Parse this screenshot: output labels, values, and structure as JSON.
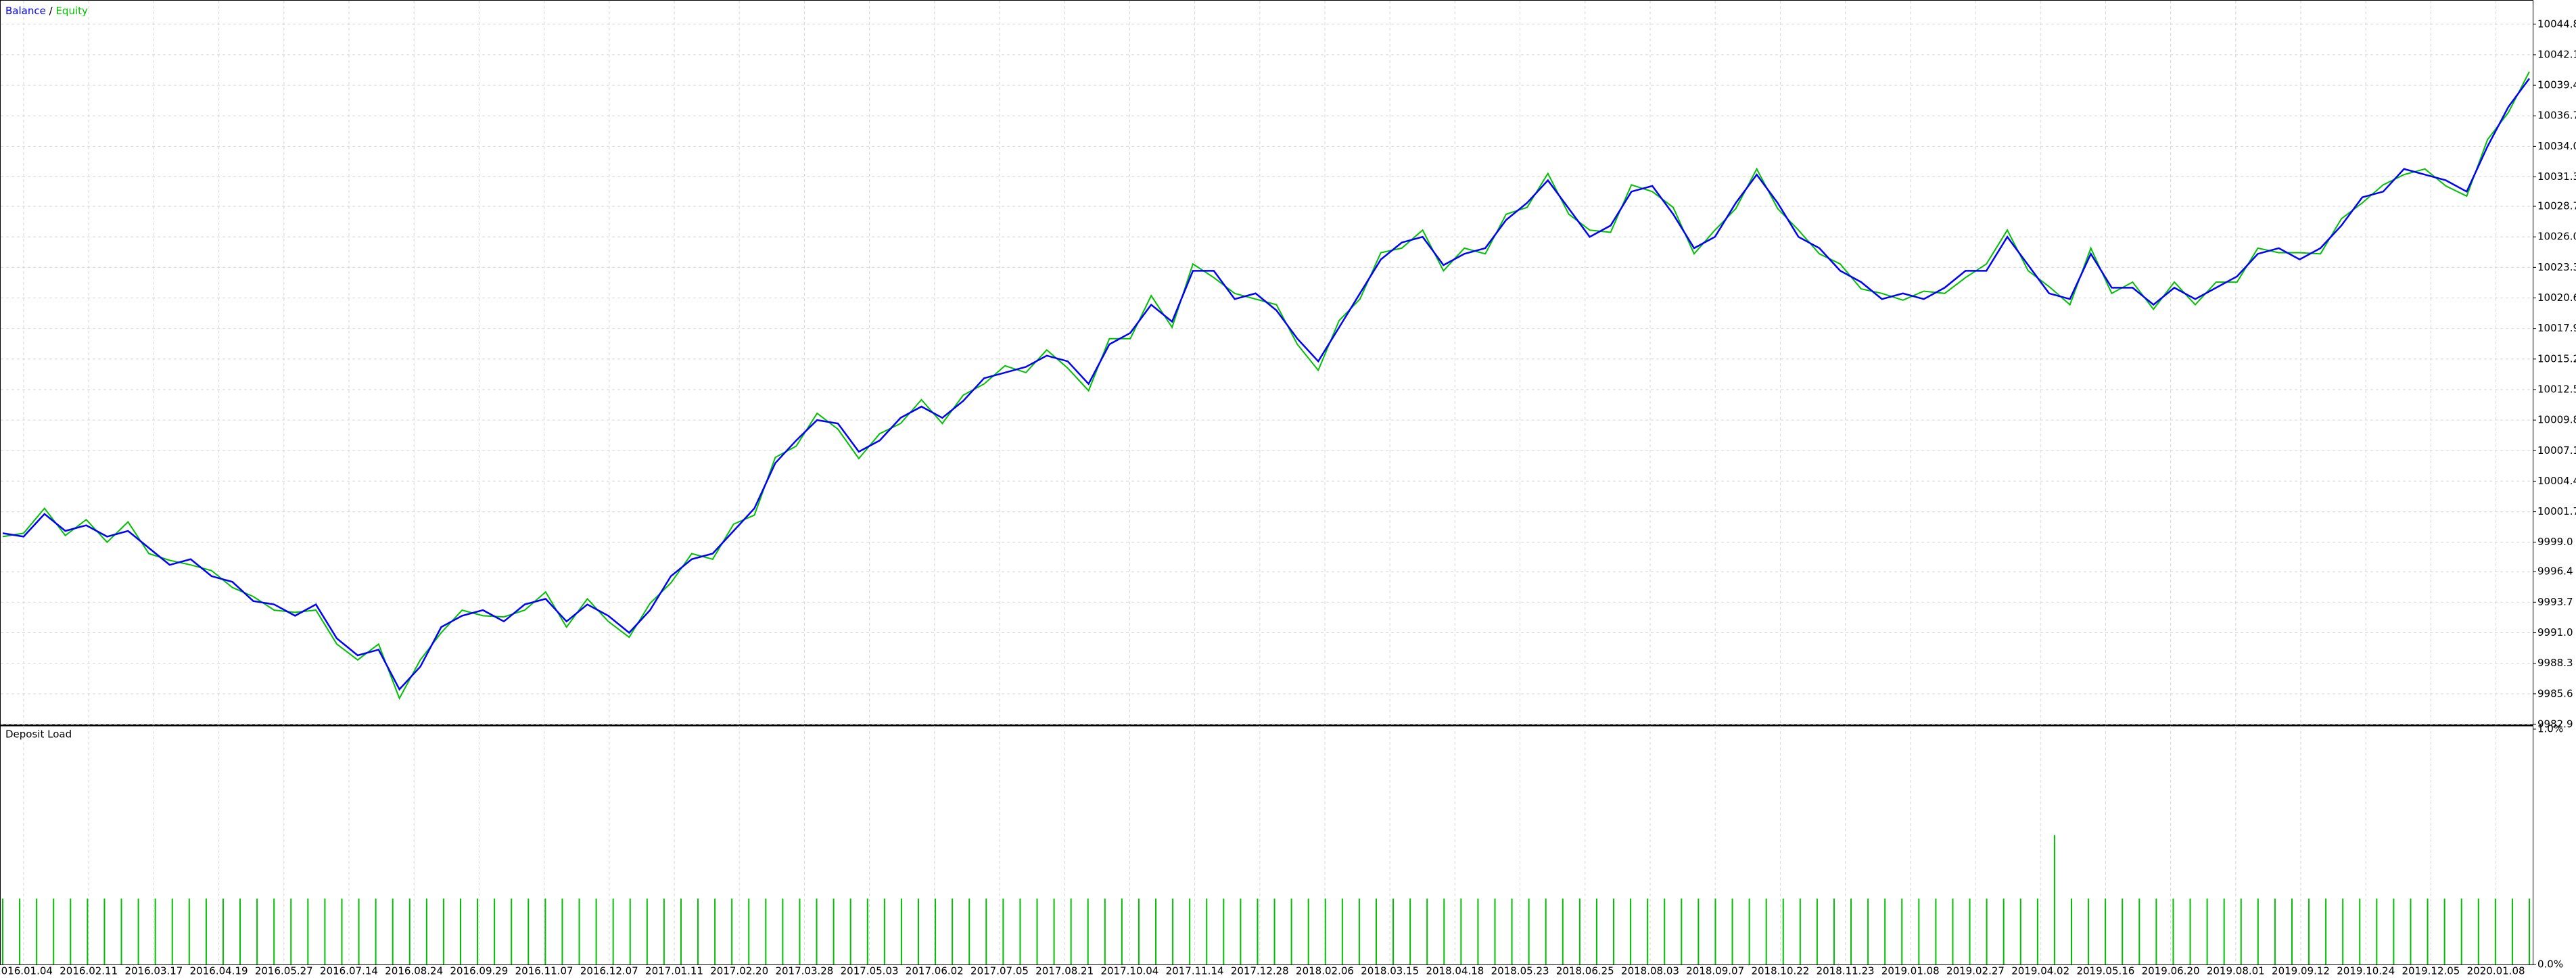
{
  "chart_data": [
    {
      "type": "line",
      "legend_separator": "/",
      "series": [
        {
          "name": "Balance",
          "color": "#0000ff",
          "values": [
            9999.8,
            9999.5,
            10001.5,
            10000,
            10000.5,
            9999.5,
            10000,
            9998.5,
            9997,
            9997.5,
            9996,
            9995.5,
            9993.8,
            9993.5,
            9992.5,
            9993.5,
            9990.5,
            9989,
            9989.5,
            9986,
            9988,
            9991.5,
            9992.5,
            9993,
            9992,
            9993.5,
            9994,
            9992,
            9993.5,
            9992.5,
            9991,
            9993,
            9996,
            9997.5,
            9998,
            10000,
            10002,
            10006,
            10008,
            10009.8,
            10009.5,
            10007,
            10008,
            10010,
            10011,
            10010,
            10011.5,
            10013.5,
            10014,
            10014.5,
            10015.5,
            10015,
            10013,
            10016.5,
            10017.5,
            10020,
            10018.5,
            10023,
            10023,
            10020.5,
            10021,
            10019.5,
            10017,
            10015,
            10018,
            10021,
            10024,
            10025.5,
            10026,
            10023.5,
            10024.5,
            10025,
            10027.5,
            10029,
            10031,
            10028.5,
            10026,
            10027,
            10030,
            10030.5,
            10028,
            10025,
            10026,
            10029,
            10031.5,
            10029,
            10026,
            10025,
            10023,
            10022,
            10020.5,
            10021,
            10020.5,
            10021.5,
            10023,
            10023,
            10026,
            10023.5,
            10021,
            10020.5,
            10024.5,
            10021.5,
            10021.5,
            10020,
            10021.5,
            10020.5,
            10021.5,
            10022.5,
            10024.5,
            10025,
            10024,
            10025,
            10027,
            10029.5,
            10030,
            10032,
            10031.5,
            10031,
            10030,
            10034,
            10037.5,
            10040
          ]
        },
        {
          "name": "Equity",
          "color": "#00c000",
          "values": [
            9999.5,
            9999.8,
            10002,
            9999.6,
            10001,
            9999,
            10000.8,
            9998,
            9997.4,
            9997,
            9996.5,
            9995,
            9994.2,
            9993,
            9992.8,
            9993,
            9990,
            9988.6,
            9990,
            9985.2,
            9988.6,
            9991,
            9993,
            9992.5,
            9992.4,
            9993,
            9994.6,
            9991.5,
            9994,
            9992,
            9990.6,
            9993.6,
            9995.4,
            9998,
            9997.5,
            10000.6,
            10001.4,
            10006.5,
            10007.5,
            10010.4,
            10009,
            10006.4,
            10008.6,
            10009.5,
            10011.6,
            10009.5,
            10012,
            10013,
            10014.6,
            10014,
            10016,
            10014.4,
            10012.4,
            10017,
            10017,
            10020.8,
            10018,
            10023.6,
            10022.4,
            10021,
            10020.5,
            10020,
            10016.5,
            10014.2,
            10018.6,
            10020.5,
            10024.6,
            10025,
            10026.6,
            10023,
            10025,
            10024.5,
            10028,
            10028.6,
            10031.6,
            10028,
            10026.6,
            10026.4,
            10030.6,
            10030,
            10028.6,
            10024.5,
            10026.6,
            10028.5,
            10032,
            10028.5,
            10026.6,
            10024.5,
            10023.6,
            10021.4,
            10021,
            10020.4,
            10021.2,
            10021,
            10022.4,
            10023.6,
            10026.6,
            10023,
            10021.6,
            10020,
            10025,
            10021,
            10022,
            10019.6,
            10022,
            10020,
            10022,
            10022,
            10025,
            10024.6,
            10024.6,
            10024.5,
            10027.6,
            10029,
            10030.6,
            10031.5,
            10032,
            10030.5,
            10029.6,
            10034.6,
            10037,
            10040.6
          ]
        }
      ],
      "ylim": [
        9982.9,
        10046.7
      ],
      "yticks": [
        {
          "value": 9982.9,
          "label": "9982.9"
        },
        9985.6,
        9988.3,
        {
          "value": 9991,
          "label": "9991.0"
        },
        9993.7,
        9996.4,
        {
          "value": 9999,
          "label": "9999.0"
        },
        10001.7,
        10004.4,
        10007.1,
        10009.8,
        10012.5,
        10015.2,
        10017.9,
        10020.6,
        10023.3,
        {
          "value": 10026,
          "label": "10026.0"
        },
        10028.7,
        10031.3,
        {
          "value": 10034,
          "label": "10034.0"
        },
        10036.7,
        10039.4,
        10042.1,
        10044.8
      ],
      "x_labels": [
        "2016.01.04",
        "2016.02.11",
        "2016.03.17",
        "2016.04.19",
        "2016.05.27",
        "2016.07.14",
        "2016.08.24",
        "2016.09.29",
        "2016.11.07",
        "2016.12.07",
        "2017.01.11",
        "2017.02.20",
        "2017.03.28",
        "2017.05.03",
        "2017.06.02",
        "2017.07.05",
        "2017.08.21",
        "2017.10.04",
        "2017.11.14",
        "2017.12.28",
        "2018.02.06",
        "2018.03.15",
        "2018.04.18",
        "2018.05.23",
        "2018.06.25",
        "2018.08.03",
        "2018.09.07",
        "2018.10.22",
        "2018.11.23",
        "2019.01.08",
        "2019.02.27",
        "2019.04.02",
        "2019.05.16",
        "2019.06.20",
        "2019.08.01",
        "2019.09.12",
        "2019.10.24",
        "2019.12.05",
        "2020.01.08"
      ],
      "grid": true
    },
    {
      "type": "bar",
      "title": "Deposit Load",
      "color": "#00c000",
      "ylim": [
        0,
        1
      ],
      "yticks": [
        {
          "value": 0,
          "label": "0.0%"
        },
        {
          "value": 1,
          "label": "1.0%"
        }
      ],
      "values": [
        0.28,
        0.28,
        0.28,
        0.28,
        0.28,
        0.28,
        0.28,
        0.28,
        0.28,
        0.28,
        0.28,
        0.28,
        0.28,
        0.28,
        0.28,
        0.28,
        0.28,
        0.28,
        0.28,
        0.28,
        0.28,
        0.28,
        0.28,
        0.28,
        0.28,
        0.28,
        0.28,
        0.28,
        0.28,
        0.28,
        0.28,
        0.28,
        0.28,
        0.28,
        0.28,
        0.28,
        0.28,
        0.28,
        0.28,
        0.28,
        0.28,
        0.28,
        0.28,
        0.28,
        0.28,
        0.28,
        0.28,
        0.28,
        0.28,
        0.28,
        0.28,
        0.28,
        0.28,
        0.28,
        0.28,
        0.28,
        0.28,
        0.28,
        0.28,
        0.28,
        0.28,
        0.28,
        0.28,
        0.28,
        0.28,
        0.28,
        0.28,
        0.28,
        0.28,
        0.28,
        0.28,
        0.28,
        0.28,
        0.28,
        0.28,
        0.28,
        0.28,
        0.28,
        0.28,
        0.28,
        0.28,
        0.28,
        0.28,
        0.28,
        0.28,
        0.28,
        0.28,
        0.28,
        0.28,
        0.28,
        0.28,
        0.28,
        0.28,
        0.28,
        0.28,
        0.28,
        0.28,
        0.28,
        0.28,
        0.28,
        0.28,
        0.28,
        0.28,
        0.28,
        0.28,
        0.28,
        0.28,
        0.28,
        0.28,
        0.28,
        0.28,
        0.28,
        0.28,
        0.28,
        0.28,
        0.28,
        0.28,
        0.28,
        0.28,
        0.28,
        0.28,
        0.55,
        0.28,
        0.28,
        0.28,
        0.28,
        0.28,
        0.28,
        0.28,
        0.28,
        0.28,
        0.28,
        0.28,
        0.28,
        0.28,
        0.28,
        0.28,
        0.28,
        0.28,
        0.28,
        0.28,
        0.28,
        0.28,
        0.28,
        0.28,
        0.28,
        0.28,
        0.28,
        0.28,
        0.28
      ]
    }
  ]
}
